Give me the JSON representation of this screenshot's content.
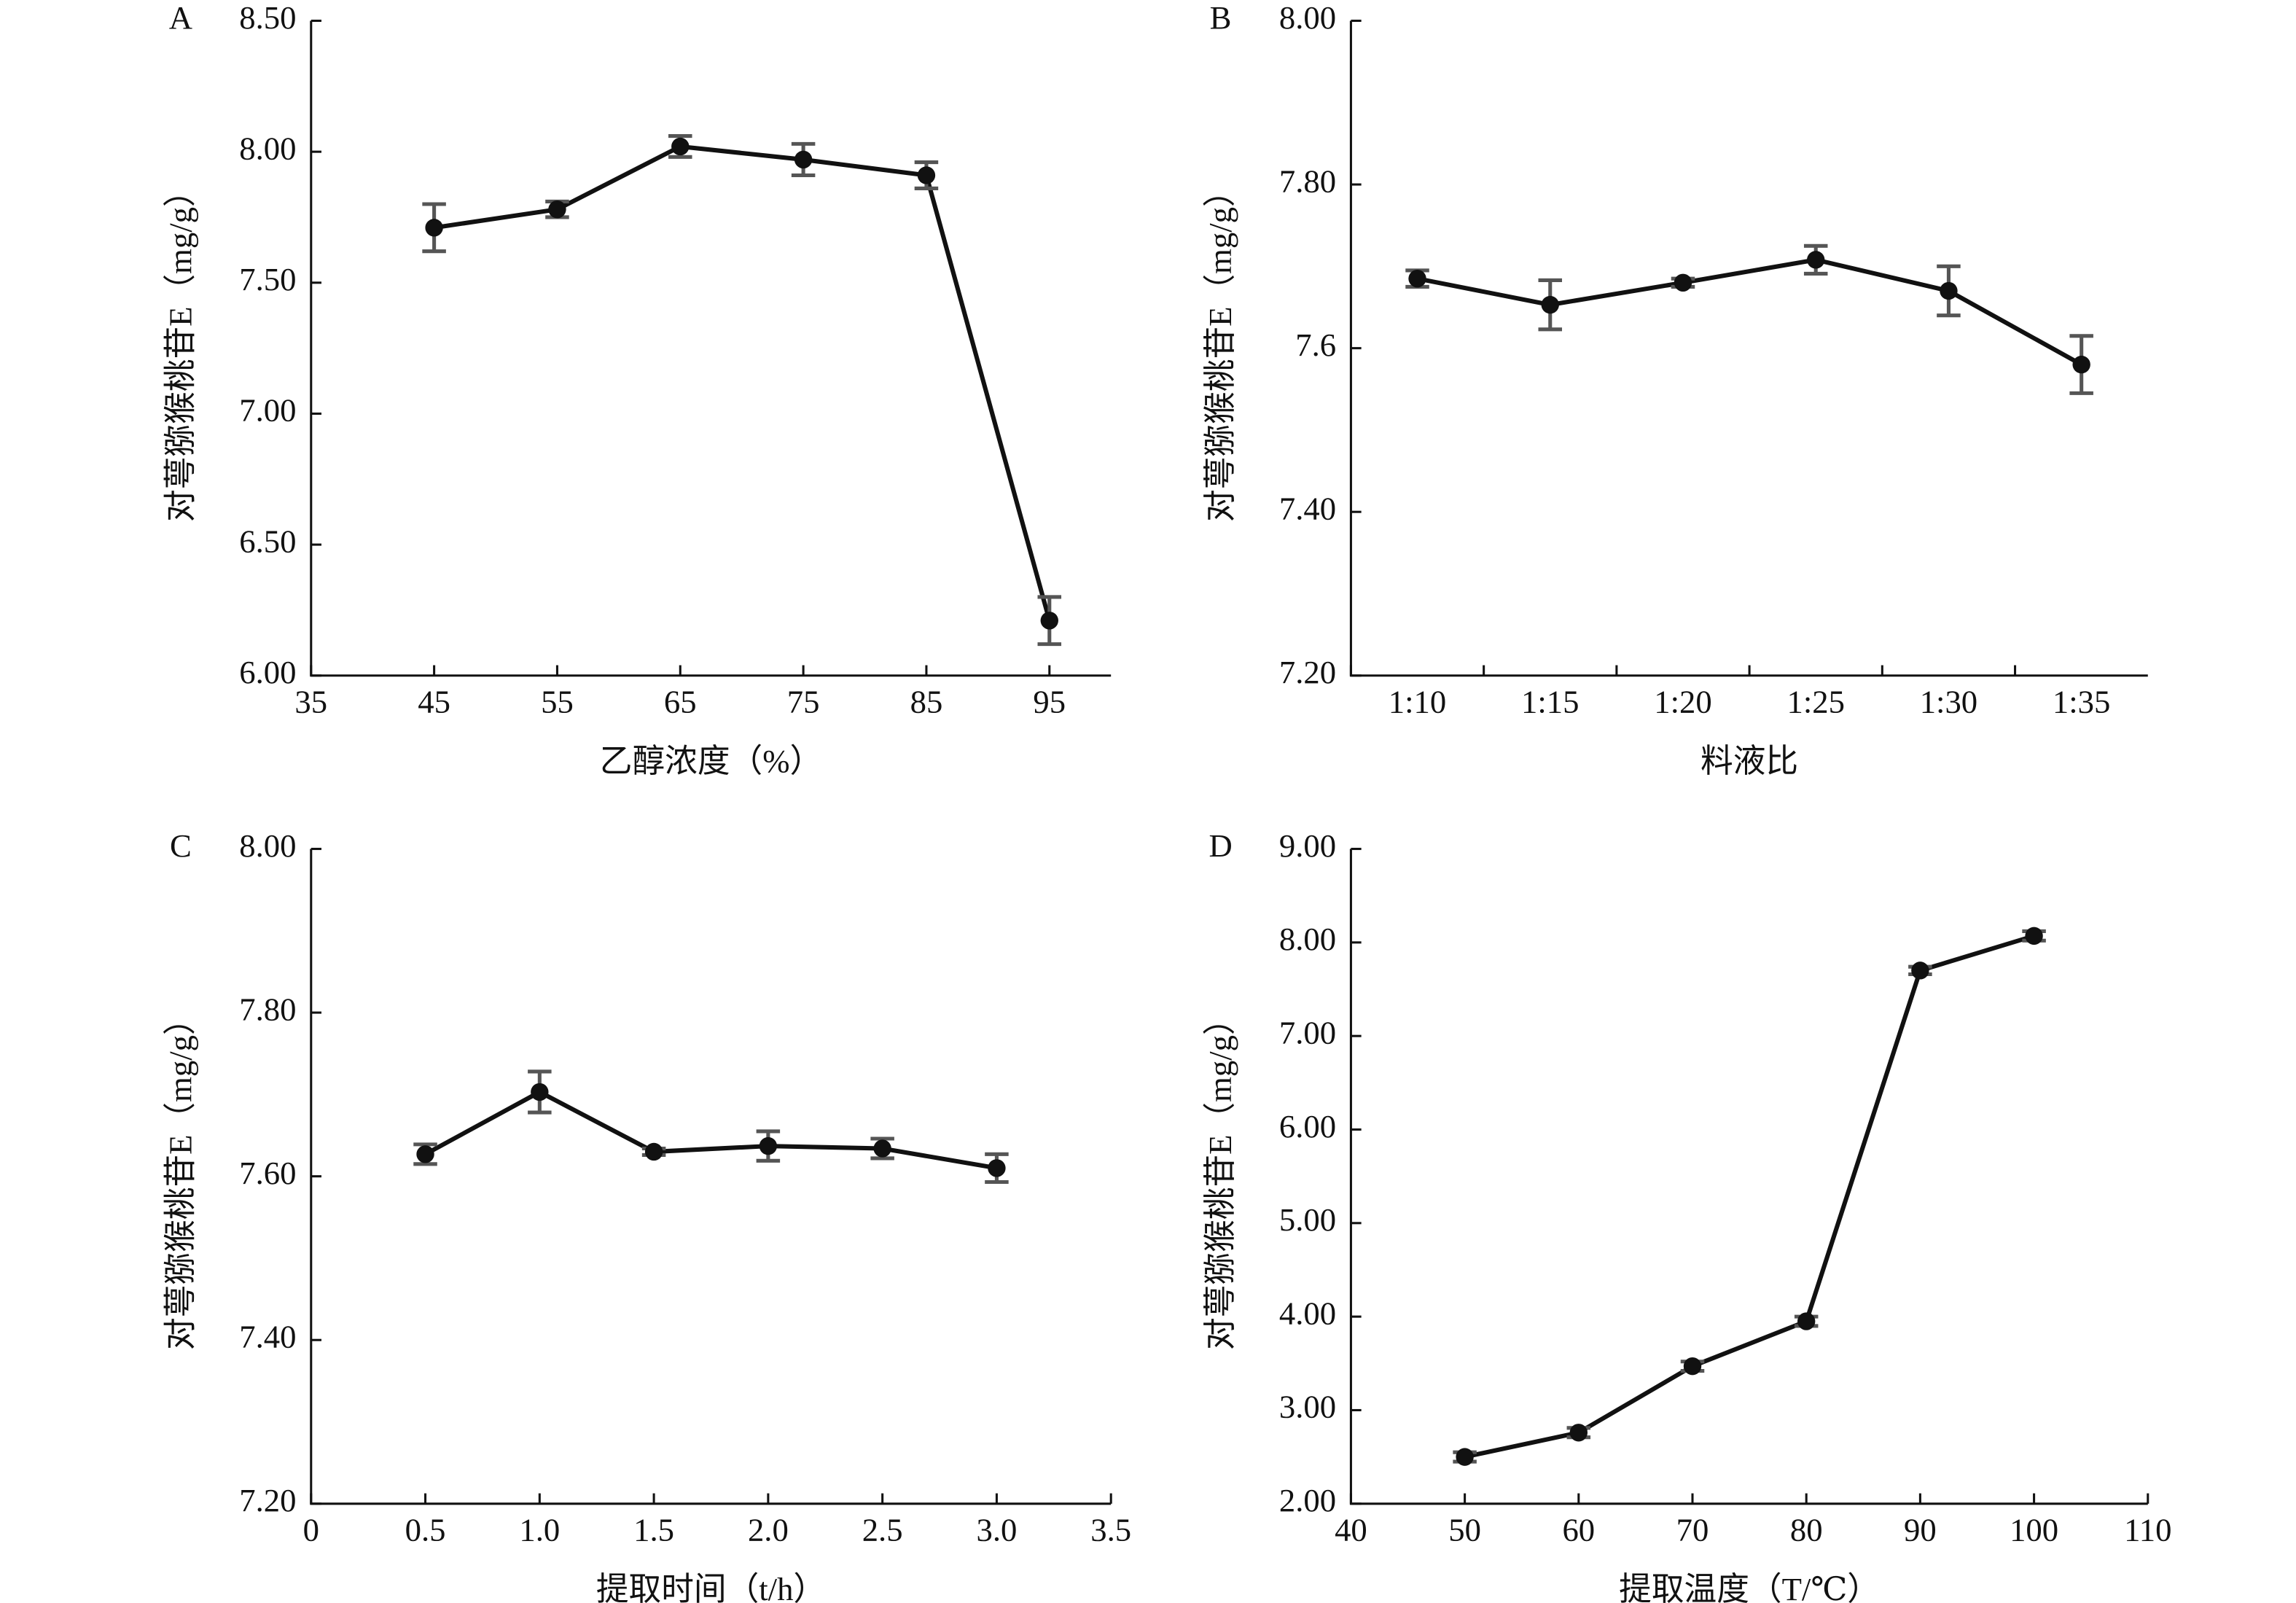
{
  "chart_data": [
    {
      "type": "line",
      "panel": "A",
      "y_label": "对萼猕猴桃苷E（mg/g）",
      "x_label": "乙醇浓度（%）",
      "x": [
        45,
        55,
        65,
        75,
        85,
        95
      ],
      "values": [
        7.71,
        7.78,
        8.02,
        7.97,
        7.91,
        6.21
      ],
      "errors": [
        0.09,
        0.03,
        0.04,
        0.06,
        0.05,
        0.09
      ],
      "color": "#111111",
      "xlim": [
        35,
        100
      ],
      "xticks": [
        35,
        45,
        55,
        65,
        75,
        85,
        95
      ],
      "ylim": [
        6,
        8.5
      ],
      "yticks": [
        {
          "value": 6,
          "label": "6.00"
        },
        {
          "value": 6.5,
          "label": "6.50"
        },
        {
          "value": 7,
          "label": "7.00"
        },
        {
          "value": 7.5,
          "label": "7.50"
        },
        {
          "value": 8,
          "label": "8.00"
        },
        {
          "value": 8.5,
          "label": "8.50"
        }
      ]
    },
    {
      "type": "line",
      "panel": "B",
      "y_label": "对萼猕猴桃苷E（mg/g）",
      "x_label": "料液比",
      "categories": [
        "1:10",
        "1:15",
        "1:20",
        "1:25",
        "1:30",
        "1:35"
      ],
      "values": [
        7.685,
        7.653,
        7.68,
        7.708,
        7.67,
        7.58
      ],
      "errors": [
        0.01,
        0.03,
        0.005,
        0.017,
        0.03,
        0.035
      ],
      "color": "#111111",
      "ylim": [
        7.2,
        8.0
      ],
      "yticks": [
        {
          "value": 7.2,
          "label": "7.20"
        },
        {
          "value": 7.4,
          "label": "7.40"
        },
        7.6,
        {
          "value": 7.8,
          "label": "7.80"
        },
        {
          "value": 8,
          "label": "8.00"
        }
      ]
    },
    {
      "type": "line",
      "panel": "C",
      "y_label": "对萼猕猴桃苷E（mg/g）",
      "x_label": "提取时间（t/h）",
      "x": [
        0.5,
        1,
        1.5,
        2,
        2.5,
        3
      ],
      "values": [
        7.627,
        7.703,
        7.63,
        7.637,
        7.634,
        7.61
      ],
      "errors": [
        0.012,
        0.025,
        0.004,
        0.018,
        0.012,
        0.017
      ],
      "color": "#111111",
      "xlim": [
        0,
        3.5
      ],
      "xticks": [
        0,
        0.5,
        {
          "value": 1,
          "label": "1.0"
        },
        1.5,
        {
          "value": 2,
          "label": "2.0"
        },
        2.5,
        {
          "value": 3,
          "label": "3.0"
        },
        3.5
      ],
      "ylim": [
        7.2,
        8.0
      ],
      "yticks": [
        {
          "value": 7.2,
          "label": "7.20"
        },
        {
          "value": 7.4,
          "label": "7.40"
        },
        {
          "value": 7.6,
          "label": "7.60"
        },
        {
          "value": 7.8,
          "label": "7.80"
        },
        {
          "value": 8,
          "label": "8.00"
        }
      ]
    },
    {
      "type": "line",
      "panel": "D",
      "y_label": "对萼猕猴桃苷E（mg/g）",
      "x_label": "提取温度（T/℃）",
      "x": [
        50,
        60,
        70,
        80,
        90,
        100
      ],
      "values": [
        2.5,
        2.76,
        3.47,
        3.95,
        7.7,
        8.07
      ],
      "errors": [
        0.05,
        0.05,
        0.05,
        0.05,
        0.04,
        0.05
      ],
      "color": "#111111",
      "xlim": [
        40,
        110
      ],
      "xticks": [
        40,
        50,
        60,
        70,
        80,
        90,
        100,
        110
      ],
      "ylim": [
        2,
        9
      ],
      "yticks": [
        {
          "value": 2,
          "label": "2.00"
        },
        {
          "value": 3,
          "label": "3.00"
        },
        {
          "value": 4,
          "label": "4.00"
        },
        {
          "value": 5,
          "label": "5.00"
        },
        {
          "value": 6,
          "label": "6.00"
        },
        {
          "value": 7,
          "label": "7.00"
        },
        {
          "value": 8,
          "label": "8.00"
        },
        {
          "value": 9,
          "label": "9.00"
        }
      ]
    }
  ]
}
